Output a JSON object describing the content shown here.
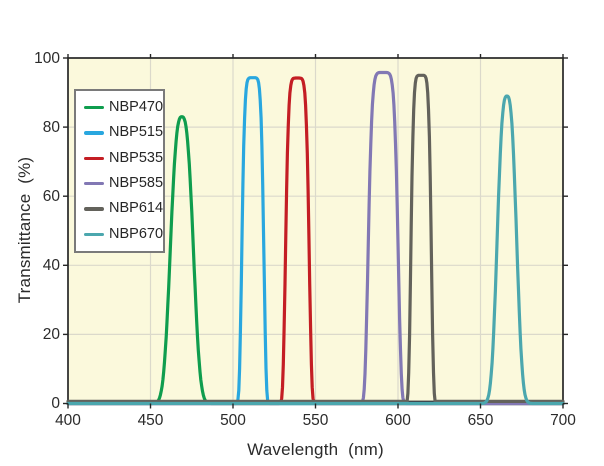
{
  "chart_data": {
    "type": "line",
    "title": "",
    "xlabel": "Wavelength  (nm)",
    "ylabel": "Transmittance  (%)",
    "xlim": [
      400,
      700
    ],
    "ylim": [
      0,
      100
    ],
    "x_ticks": [
      400,
      450,
      500,
      550,
      600,
      650,
      700
    ],
    "y_ticks": [
      0,
      20,
      40,
      60,
      80,
      100
    ],
    "grid": true,
    "legend_position": "upper-left",
    "series": [
      {
        "name": "NBP470",
        "color": "#0F9D4E",
        "center_nm": 469,
        "peak_pct": 83.0,
        "fwhm_nm": 14,
        "halfwidth_nm": 8.3,
        "edge_steepness": 2.8,
        "floor_pct": 0
      },
      {
        "name": "NBP515",
        "color": "#29A7DF",
        "center_nm": 512,
        "peak_pct": 94.3,
        "fwhm_nm": 13,
        "halfwidth_nm": 7.0,
        "edge_steepness": 6,
        "floor_pct": 0
      },
      {
        "name": "NBP535",
        "color": "#C41E24",
        "center_nm": 539,
        "peak_pct": 94.2,
        "fwhm_nm": 14,
        "halfwidth_nm": 7.5,
        "edge_steepness": 6,
        "floor_pct": 0
      },
      {
        "name": "NBP585",
        "color": "#8278B4",
        "center_nm": 591,
        "peak_pct": 95.8,
        "fwhm_nm": 18,
        "halfwidth_nm": 9.5,
        "edge_steepness": 6,
        "floor_pct": 0
      },
      {
        "name": "NBP614",
        "color": "#63625B",
        "center_nm": 614,
        "peak_pct": 95.0,
        "fwhm_nm": 12,
        "halfwidth_nm": 6.5,
        "edge_steepness": 6,
        "floor_pct": 0.6
      },
      {
        "name": "NBP670",
        "color": "#4BA7AE",
        "center_nm": 666,
        "peak_pct": 89.0,
        "fwhm_nm": 13,
        "halfwidth_nm": 7.0,
        "edge_steepness": 2.8,
        "floor_pct": 0
      }
    ]
  },
  "colors": {
    "page_bg": "#FFFFFF",
    "plot_bg": "#FBF9DC",
    "grid": "#DBD9CB",
    "frame": "#262626",
    "text": "#2B2B2B",
    "legend_border": "#7A7A7A"
  }
}
